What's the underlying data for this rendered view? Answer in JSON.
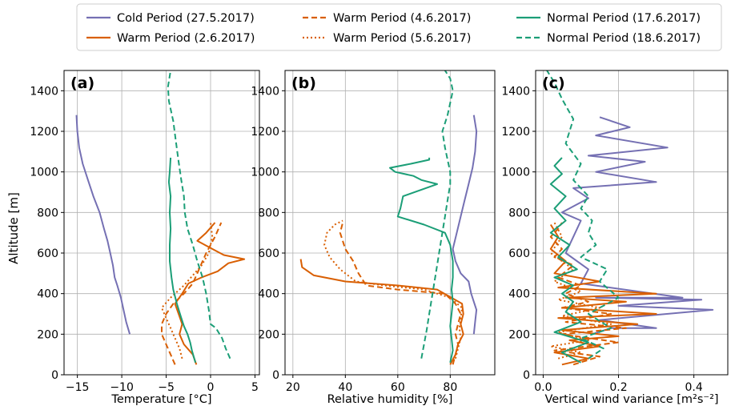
{
  "figure": {
    "ylabel": "Altitude [m]",
    "legend_placement": "top-center",
    "legend": [
      {
        "name": "Cold Period (27.5.2017)",
        "color": "#7570b3",
        "dash": "solid"
      },
      {
        "name": "Warm Period (2.6.2017)",
        "color": "#d95f02",
        "dash": "solid"
      },
      {
        "name": "Warm Period (4.6.2017)",
        "color": "#d95f02",
        "dash": "dashed"
      },
      {
        "name": "Warm Period (5.6.2017)",
        "color": "#d95f02",
        "dash": "dotted"
      },
      {
        "name": "Normal Period (17.6.2017)",
        "color": "#1b9e77",
        "dash": "solid"
      },
      {
        "name": "Normal Period (18.6.2017)",
        "color": "#1b9e77",
        "dash": "dashed"
      }
    ]
  },
  "chart_data": [
    {
      "type": "line",
      "panel_label": "(a)",
      "xlabel": "Temperature [°C]",
      "xlim": [
        -16.5,
        5.5
      ],
      "ylim": [
        0,
        1500
      ],
      "xticks": [
        -15,
        -10,
        -5,
        0,
        5
      ],
      "xtick_labels": [
        "−15",
        "−10",
        "−5",
        "0",
        "5"
      ],
      "yticks": [
        0,
        200,
        400,
        600,
        800,
        1000,
        1200,
        1400
      ],
      "grid": true,
      "series": [
        {
          "name": "Cold Period (27.5.2017)",
          "x": [
            -9.1,
            -9.5,
            -9.8,
            -10.1,
            -10.5,
            -10.8,
            -11.0,
            -11.3,
            -11.6,
            -12.0,
            -12.5,
            -13.2,
            -13.8,
            -14.4,
            -14.8,
            -15.0,
            -15.1
          ],
          "y": [
            200,
            260,
            320,
            380,
            440,
            480,
            540,
            600,
            660,
            720,
            800,
            880,
            960,
            1040,
            1120,
            1200,
            1280
          ]
        },
        {
          "name": "Warm Period (2.6.2017)",
          "x": [
            -1.6,
            -2.0,
            -3.0,
            -3.5,
            -3.2,
            -3.6,
            -4.0,
            -3.2,
            -2.5,
            -1.0,
            0.8,
            2.0,
            3.8,
            1.5,
            0.2,
            -1.5,
            -0.5,
            0.5
          ],
          "y": [
            50,
            100,
            150,
            200,
            250,
            300,
            350,
            400,
            450,
            480,
            510,
            550,
            570,
            590,
            620,
            660,
            700,
            750
          ]
        },
        {
          "name": "Warm Period (4.6.2017)",
          "x": [
            -4.0,
            -4.5,
            -5.0,
            -5.5,
            -5.5,
            -5.0,
            -4.2,
            -3.0,
            -2.0,
            -1.5,
            -1.0,
            -0.5,
            0.5,
            1.2
          ],
          "y": [
            50,
            100,
            150,
            200,
            250,
            300,
            350,
            400,
            450,
            500,
            550,
            600,
            680,
            750
          ]
        },
        {
          "name": "Warm Period (5.6.2017)",
          "x": [
            -3.2,
            -3.5,
            -4.0,
            -4.5,
            -5.0,
            -5.5,
            -4.5,
            -3.0,
            -2.0,
            -1.0,
            -0.2,
            0.2,
            0.0
          ],
          "y": [
            80,
            130,
            180,
            230,
            280,
            330,
            380,
            440,
            490,
            540,
            600,
            680,
            750
          ]
        },
        {
          "name": "Normal Period (17.6.2017)",
          "x": [
            -1.7,
            -2.1,
            -2.3,
            -2.6,
            -3.0,
            -3.3,
            -3.8,
            -4.2,
            -4.4,
            -4.6,
            -4.6,
            -4.5,
            -4.6,
            -4.5,
            -4.7,
            -4.6,
            -4.5
          ],
          "y": [
            60,
            120,
            160,
            200,
            240,
            280,
            350,
            420,
            480,
            560,
            640,
            720,
            800,
            880,
            950,
            1000,
            1070
          ]
        },
        {
          "name": "Normal Period (18.6.2017)",
          "x": [
            2.2,
            1.7,
            1.3,
            0.6,
            0.0,
            -0.2,
            -0.5,
            -0.9,
            -1.5,
            -2.0,
            -2.6,
            -2.9,
            -3.0,
            -3.3,
            -3.6,
            -3.9,
            -4.2,
            -4.7,
            -4.8,
            -4.5
          ],
          "y": [
            80,
            130,
            180,
            230,
            250,
            320,
            400,
            480,
            560,
            640,
            720,
            800,
            880,
            960,
            1050,
            1150,
            1250,
            1350,
            1420,
            1500
          ]
        }
      ]
    },
    {
      "type": "line",
      "panel_label": "(b)",
      "xlabel": "Relative humidity [%]",
      "xlim": [
        17,
        97
      ],
      "ylim": [
        0,
        1500
      ],
      "xticks": [
        20,
        40,
        60,
        80
      ],
      "xtick_labels": [
        "20",
        "40",
        "60",
        "80"
      ],
      "yticks": [
        0,
        200,
        400,
        600,
        800,
        1000,
        1200,
        1400
      ],
      "grid": true,
      "series": [
        {
          "name": "Cold Period (27.5.2017)",
          "x": [
            89.0,
            89.5,
            90.0,
            89.0,
            88.0,
            87.0,
            84.0,
            82.0,
            81.0,
            82.5,
            84.0,
            85.5,
            87.0,
            88.5,
            89.5,
            90.0,
            89.0
          ],
          "y": [
            200,
            260,
            320,
            360,
            400,
            460,
            500,
            560,
            620,
            700,
            780,
            860,
            940,
            1020,
            1100,
            1200,
            1280
          ]
        },
        {
          "name": "Warm Period (2.6.2017)",
          "x": [
            80.0,
            82.0,
            83.0,
            85.0,
            84.0,
            85.0,
            84.5,
            75.0,
            60.0,
            40.0,
            28.0,
            23.5,
            23.0
          ],
          "y": [
            50,
            100,
            150,
            200,
            250,
            300,
            350,
            420,
            440,
            460,
            490,
            530,
            570
          ]
        },
        {
          "name": "Warm Period (4.6.2017)",
          "x": [
            81.0,
            82.0,
            83.0,
            82.0,
            83.0,
            84.0,
            82.0,
            78.0,
            60.0,
            48.0,
            45.0,
            43.0,
            40.0,
            38.0,
            39.0
          ],
          "y": [
            50,
            100,
            150,
            200,
            250,
            300,
            350,
            400,
            420,
            440,
            500,
            560,
            620,
            700,
            750
          ]
        },
        {
          "name": "Warm Period (5.6.2017)",
          "x": [
            82.0,
            83.0,
            84.0,
            83.5,
            84.0,
            84.5,
            80.0,
            70.0,
            55.0,
            44.0,
            38.0,
            34.0,
            32.0,
            33.0,
            36.0,
            39.0
          ],
          "y": [
            80,
            130,
            180,
            230,
            280,
            330,
            380,
            420,
            440,
            460,
            520,
            580,
            640,
            700,
            740,
            760
          ]
        },
        {
          "name": "Normal Period (17.6.2017)",
          "x": [
            80.0,
            81.0,
            80.5,
            80.0,
            80.5,
            81.0,
            80.5,
            81.0,
            81.0,
            80.0,
            78.0,
            70.0,
            60.0,
            61.0,
            62.0,
            75.0,
            69.0,
            66.0,
            59.0,
            57.0,
            65.0,
            72.0,
            72.0
          ],
          "y": [
            60,
            120,
            180,
            240,
            300,
            360,
            420,
            480,
            560,
            640,
            700,
            740,
            780,
            820,
            880,
            940,
            960,
            980,
            1000,
            1020,
            1040,
            1060,
            1070
          ]
        },
        {
          "name": "Normal Period (18.6.2017)",
          "x": [
            69.0,
            70.0,
            71.0,
            72.0,
            73.0,
            74.0,
            75.0,
            76.0,
            77.0,
            78.0,
            79.0,
            80.0,
            80.0,
            79.0,
            78.0,
            77.0,
            79.0,
            80.0,
            81.0,
            80.0,
            78.0
          ],
          "y": [
            80,
            150,
            220,
            300,
            380,
            460,
            540,
            620,
            700,
            780,
            860,
            940,
            1000,
            1060,
            1120,
            1200,
            1280,
            1340,
            1400,
            1460,
            1500
          ]
        }
      ]
    },
    {
      "type": "line",
      "panel_label": "(c)",
      "xlabel": "Vertical wind variance [m²s⁻²]",
      "xlim": [
        -0.02,
        0.49
      ],
      "ylim": [
        0,
        1500
      ],
      "xticks": [
        0.0,
        0.2,
        0.4
      ],
      "xtick_labels": [
        "0.0",
        "0.2",
        "0.4"
      ],
      "yticks": [
        0,
        200,
        400,
        600,
        800,
        1000,
        1200,
        1400
      ],
      "grid": true,
      "series": [
        {
          "name": "Cold Period (27.5.2017)",
          "x": [
            0.13,
            0.18,
            0.3,
            0.15,
            0.45,
            0.2,
            0.42,
            0.14,
            0.37,
            0.1,
            0.12,
            0.06,
            0.08,
            0.1,
            0.05,
            0.12,
            0.08,
            0.3,
            0.14,
            0.27,
            0.12,
            0.33,
            0.14,
            0.23,
            0.15
          ],
          "y": [
            200,
            230,
            230,
            270,
            320,
            340,
            370,
            380,
            380,
            450,
            520,
            600,
            680,
            760,
            800,
            870,
            920,
            950,
            1000,
            1050,
            1080,
            1120,
            1180,
            1220,
            1270
          ]
        },
        {
          "name": "Warm Period (2.6.2017)",
          "x": [
            0.05,
            0.12,
            0.03,
            0.15,
            0.07,
            0.2,
            0.05,
            0.25,
            0.04,
            0.3,
            0.05,
            0.22,
            0.06,
            0.3,
            0.04,
            0.15,
            0.03,
            0.06,
            0.02,
            0.04,
            0.02
          ],
          "y": [
            50,
            80,
            110,
            140,
            170,
            190,
            220,
            250,
            280,
            300,
            330,
            360,
            380,
            400,
            430,
            460,
            500,
            560,
            620,
            680,
            740
          ]
        },
        {
          "name": "Warm Period (4.6.2017)",
          "x": [
            0.08,
            0.15,
            0.03,
            0.2,
            0.05,
            0.22,
            0.06,
            0.18,
            0.05,
            0.12,
            0.06,
            0.1,
            0.04,
            0.08,
            0.03,
            0.05,
            0.02,
            0.04,
            0.05
          ],
          "y": [
            50,
            90,
            120,
            160,
            200,
            230,
            260,
            300,
            330,
            360,
            400,
            440,
            480,
            540,
            580,
            620,
            680,
            720,
            750
          ]
        },
        {
          "name": "Warm Period (5.6.2017)",
          "x": [
            0.04,
            0.1,
            0.02,
            0.12,
            0.04,
            0.18,
            0.05,
            0.15,
            0.04,
            0.1,
            0.03,
            0.08,
            0.02,
            0.05,
            0.03
          ],
          "y": [
            80,
            110,
            140,
            170,
            210,
            250,
            290,
            330,
            370,
            410,
            460,
            520,
            600,
            680,
            750
          ]
        },
        {
          "name": "Normal Period (17.6.2017)",
          "x": [
            0.1,
            0.05,
            0.12,
            0.03,
            0.1,
            0.06,
            0.08,
            0.05,
            0.08,
            0.03,
            0.09,
            0.04,
            0.07,
            0.02,
            0.06,
            0.03,
            0.06,
            0.02,
            0.05,
            0.03,
            0.05
          ],
          "y": [
            60,
            110,
            160,
            210,
            260,
            310,
            360,
            400,
            440,
            480,
            520,
            580,
            640,
            700,
            760,
            820,
            880,
            940,
            990,
            1030,
            1070
          ]
        },
        {
          "name": "Normal Period (18.6.2017)",
          "x": [
            0.12,
            0.16,
            0.1,
            0.18,
            0.12,
            0.2,
            0.15,
            0.17,
            0.1,
            0.14,
            0.12,
            0.13,
            0.1,
            0.12,
            0.08,
            0.1,
            0.06,
            0.08,
            0.05,
            0.03,
            0.01
          ],
          "y": [
            80,
            130,
            180,
            230,
            300,
            380,
            460,
            520,
            580,
            640,
            700,
            760,
            820,
            880,
            960,
            1040,
            1140,
            1260,
            1360,
            1440,
            1500
          ]
        }
      ]
    }
  ]
}
